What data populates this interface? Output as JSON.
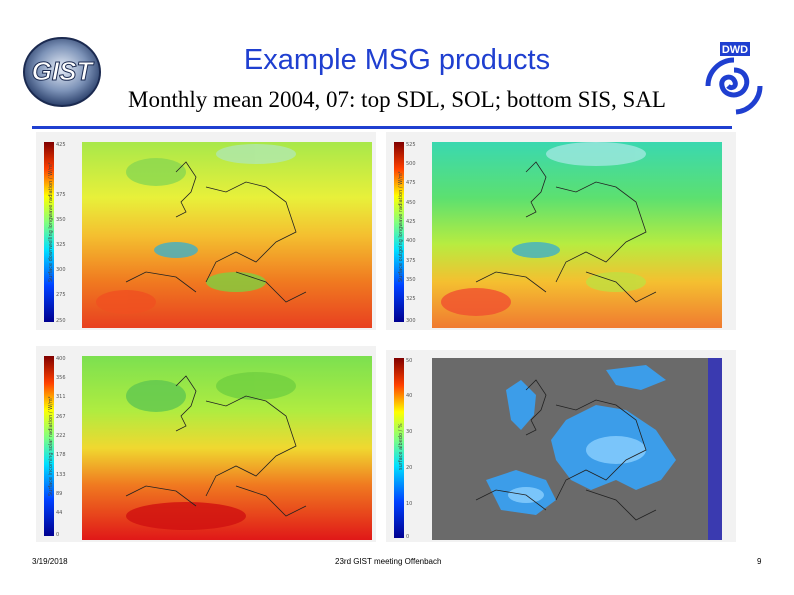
{
  "header": {
    "title": "Example MSG products",
    "subtitle": "Monthly mean 2004, 07: top SDL, SOL; bottom SIS, SAL"
  },
  "logos": {
    "left": {
      "icon": "gist-logo-icon",
      "text": "GIST"
    },
    "right": {
      "icon": "dwd-logo-icon",
      "text": "DWD"
    }
  },
  "panels": [
    {
      "name": "sdl-map",
      "product": "SDL",
      "colorbar_label": "Surface downwelling longwave radiation / W/m²",
      "ticks": [
        "425",
        "375",
        "350",
        "325",
        "300",
        "275",
        "250"
      ]
    },
    {
      "name": "sol-map",
      "product": "SOL",
      "colorbar_label": "Surface outgoing longwave radiation / W/m²",
      "ticks": [
        "525",
        "500",
        "475",
        "450",
        "425",
        "400",
        "375",
        "350",
        "325",
        "300"
      ]
    },
    {
      "name": "sis-map",
      "product": "SIS",
      "colorbar_label": "Surface incoming solar radiation / W/m²",
      "ticks": [
        "400",
        "356",
        "311",
        "267",
        "222",
        "178",
        "133",
        "89",
        "44",
        "0"
      ]
    },
    {
      "name": "sal-map",
      "product": "SAL",
      "colorbar_label": "surface albedo / %",
      "ticks": [
        "50",
        "40",
        "30",
        "20",
        "10",
        "0"
      ]
    }
  ],
  "footer": {
    "date": "3/19/2018",
    "meeting": "23rd GIST meeting Offenbach",
    "page": "9"
  },
  "colors": {
    "title": "#1f3fd0",
    "rule": "#1f3fd0"
  }
}
